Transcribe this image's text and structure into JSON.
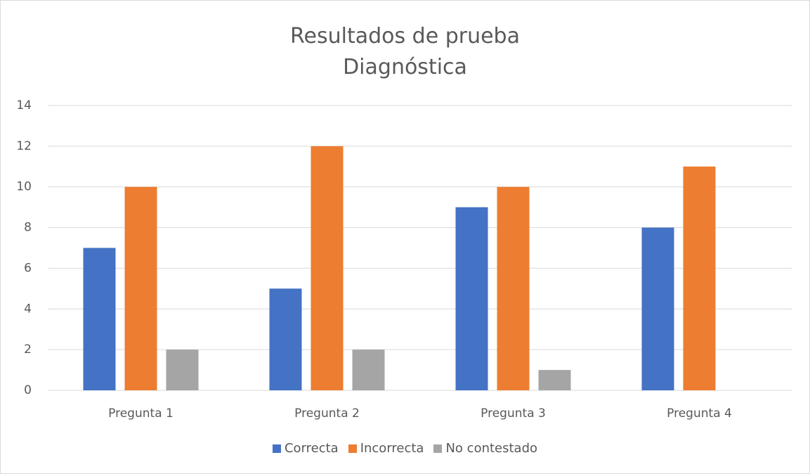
{
  "chart_data": {
    "type": "bar",
    "title": "Resultados de prueba Diagnóstica",
    "categories": [
      "Pregunta 1",
      "Pregunta 2",
      "Pregunta 3",
      "Pregunta 4"
    ],
    "series": [
      {
        "name": "Correcta",
        "color": "#4472c4",
        "values": [
          7,
          5,
          9,
          8
        ]
      },
      {
        "name": "Incorrecta",
        "color": "#ed7d31",
        "values": [
          10,
          12,
          10,
          11
        ]
      },
      {
        "name": "No contestado",
        "color": "#a5a5a5",
        "values": [
          2,
          2,
          1,
          0
        ]
      }
    ],
    "ylim": [
      0,
      14
    ],
    "yticks": [
      0,
      2,
      4,
      6,
      8,
      10,
      12,
      14
    ],
    "grid": true,
    "legend": "bottom"
  }
}
